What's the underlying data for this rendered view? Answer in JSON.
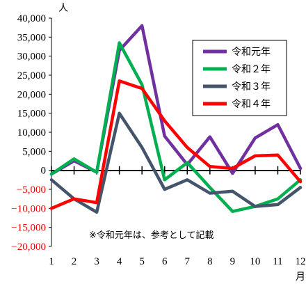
{
  "chart_data": {
    "type": "line",
    "y_unit": "人",
    "x_unit": "月",
    "categories": [
      "1",
      "2",
      "3",
      "4",
      "5",
      "6",
      "7",
      "8",
      "9",
      "10",
      "11",
      "12"
    ],
    "ylim": [
      -20000,
      40000
    ],
    "yticks": [
      40000,
      35000,
      30000,
      25000,
      20000,
      15000,
      10000,
      5000,
      0,
      -5000,
      -10000,
      -15000,
      -20000
    ],
    "ytick_labels": [
      "40,000",
      "35,000",
      "30,000",
      "25,000",
      "20,000",
      "15,000",
      "10,000",
      "5,000",
      "0",
      "−5,000",
      "−10,000",
      "−15,000",
      "−20,000"
    ],
    "ytick_colors": {
      "positive": "#000000",
      "negative": "#ff0000"
    },
    "legend_position": "top-right",
    "grid": false,
    "series": [
      {
        "name": "令和元年",
        "color": "#7030a0",
        "values": [
          -1000,
          2500,
          -500,
          31500,
          38000,
          9000,
          1500,
          8800,
          -800,
          8500,
          12000,
          500
        ]
      },
      {
        "name": "令和２年",
        "color": "#00b050",
        "values": [
          -1000,
          3000,
          -500,
          33500,
          22500,
          -2500,
          2000,
          -4500,
          -10800,
          -9500,
          -7500,
          -2500
        ]
      },
      {
        "name": "令和３年",
        "color": "#44546a",
        "values": [
          -2500,
          -7500,
          -11000,
          15000,
          6000,
          -5000,
          -2500,
          -6000,
          -5500,
          -9500,
          -9000,
          -4500
        ]
      },
      {
        "name": "令和４年",
        "color": "#ff0000",
        "values": [
          -10000,
          -7500,
          -8500,
          23500,
          21500,
          13000,
          6000,
          1000,
          500,
          3800,
          4000,
          -3000
        ]
      }
    ],
    "annotation": "※令和元年は、参考として記載"
  }
}
